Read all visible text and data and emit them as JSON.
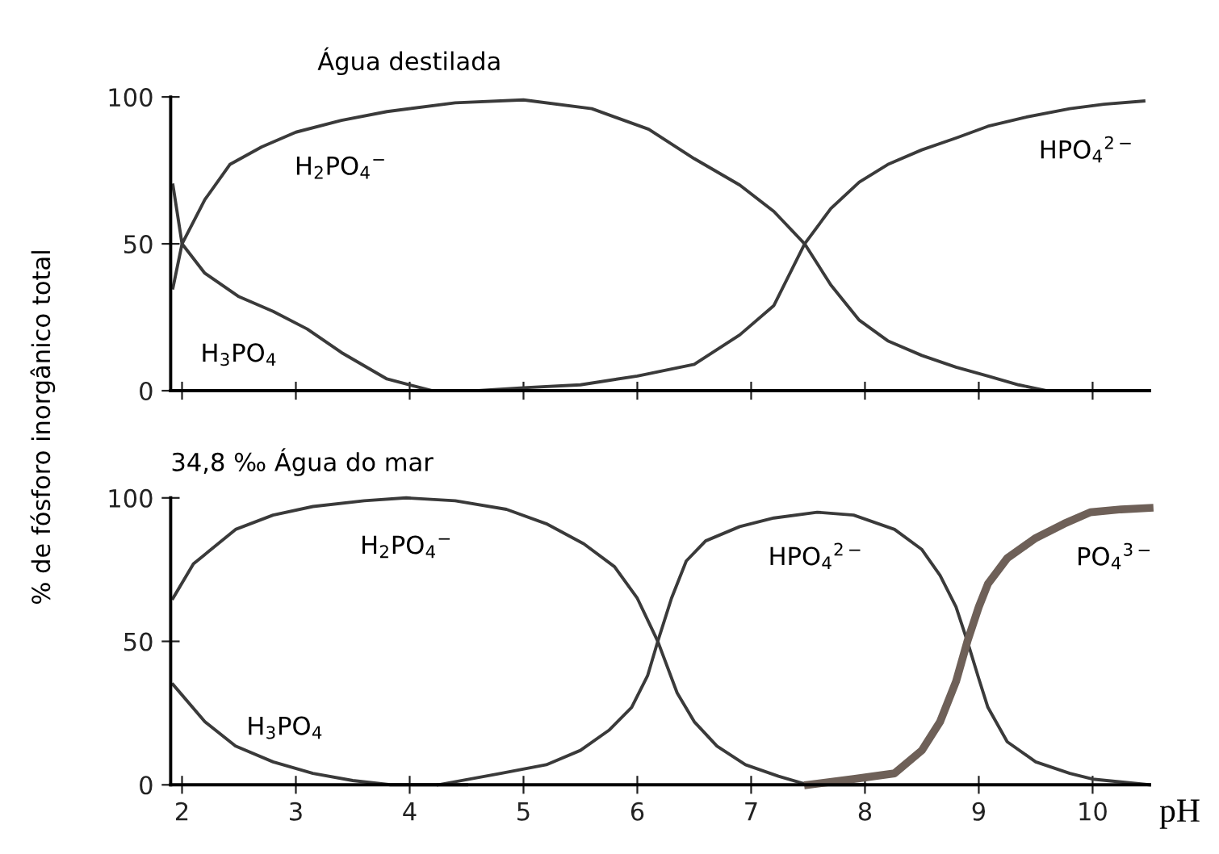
{
  "chart_data": [
    {
      "type": "line",
      "title": "Água destilada",
      "ylabel": "% de fósforo inorgânico total",
      "xlim": [
        1.9,
        10.5
      ],
      "ylim": [
        0,
        100
      ],
      "xticks": [
        {
          "value": 2,
          "label": null
        },
        {
          "value": 3,
          "label": null
        },
        {
          "value": 4,
          "label": null
        },
        {
          "value": 5,
          "label": null
        },
        {
          "value": 6,
          "label": null
        },
        {
          "value": 7,
          "label": null
        },
        {
          "value": 8,
          "label": null
        },
        {
          "value": 9,
          "label": null
        },
        {
          "value": 10,
          "label": null
        }
      ],
      "yticks": [
        0,
        50,
        100
      ],
      "tick_labels": "y",
      "grid": false,
      "legend": false,
      "marker": "none",
      "line_style": "solid",
      "series": [
        {
          "name": "H$_{3}$PO$_{4}$",
          "color": "#3a3a3a",
          "x": [
            1.92,
            2.0,
            2.2,
            2.5,
            2.8,
            3.1,
            3.4,
            3.8,
            4.2,
            5.0
          ],
          "values": [
            35,
            50,
            40,
            32,
            27,
            21,
            13,
            4,
            0,
            0
          ]
        },
        {
          "name": "H$_{2}$PO$_{4}$$^{−}$",
          "color": "#3a3a3a",
          "x": [
            1.92,
            2.0,
            2.2,
            2.42,
            2.7,
            3.0,
            3.4,
            3.8,
            4.4,
            5.0,
            5.6,
            6.1,
            6.5,
            6.9,
            7.2,
            7.47,
            7.7,
            7.95,
            8.2,
            8.5,
            8.8,
            9.08,
            9.35,
            9.6,
            10.4
          ],
          "values": [
            70,
            50,
            65,
            77,
            83,
            88,
            92,
            95,
            98,
            99,
            96,
            89,
            79,
            70,
            61,
            50,
            36,
            24,
            17,
            12,
            8,
            5,
            2,
            0,
            0
          ]
        },
        {
          "name": "HPO$_{4}$$^{2−}$",
          "color": "#3a3a3a",
          "x": [
            4.6,
            5.0,
            5.5,
            6.0,
            6.5,
            6.9,
            7.2,
            7.47,
            7.7,
            7.95,
            8.2,
            8.5,
            8.8,
            9.08,
            9.4,
            9.8,
            10.1,
            10.45
          ],
          "values": [
            0,
            1,
            2,
            5,
            9,
            19,
            29,
            50,
            62,
            71,
            77,
            82,
            86,
            90,
            93,
            96,
            97.5,
            98.6
          ]
        }
      ]
    },
    {
      "type": "line",
      "title": "34,8 ‰ Água do mar",
      "xlabel": "pH",
      "xlim": [
        1.9,
        10.5
      ],
      "ylim": [
        0,
        100
      ],
      "xticks": [
        2,
        3,
        4,
        5,
        6,
        7,
        8,
        9,
        10
      ],
      "yticks": [
        0,
        50,
        100
      ],
      "grid": false,
      "legend": false,
      "marker": "none",
      "line_style": "solid",
      "series": [
        {
          "name": "H$_{3}$PO$_{4}$",
          "color": "#3a3a3a",
          "x": [
            1.92,
            2.2,
            2.47,
            2.8,
            3.15,
            3.5,
            3.83,
            4.5
          ],
          "values": [
            35,
            22,
            13.5,
            8,
            4,
            1.5,
            0,
            0
          ]
        },
        {
          "name": "H$_{2}$PO$_{4}$$^{−}$",
          "color": "#3a3a3a",
          "x": [
            1.92,
            2.1,
            2.47,
            2.8,
            3.15,
            3.6,
            3.97,
            4.4,
            4.85,
            5.2,
            5.53,
            5.8,
            6.0,
            6.18,
            6.35,
            6.5,
            6.7,
            6.95,
            7.24,
            7.5,
            8.0
          ],
          "values": [
            65,
            77,
            89,
            94,
            97,
            99,
            100,
            99,
            96,
            91,
            84,
            76,
            65,
            50,
            32,
            22,
            13.5,
            7,
            3,
            0,
            0
          ]
        },
        {
          "name": "HPO$_{4}$$^{2−}$",
          "color": "#3a3a3a",
          "x": [
            4.25,
            4.8,
            5.2,
            5.5,
            5.75,
            5.95,
            6.09,
            6.18,
            6.3,
            6.43,
            6.6,
            6.9,
            7.2,
            7.58,
            7.9,
            8.26,
            8.5,
            8.66,
            8.8,
            8.9,
            9.0,
            9.08,
            9.25,
            9.5,
            9.8,
            10.0,
            10.5
          ],
          "values": [
            0,
            4,
            7,
            12,
            19,
            27,
            38,
            50,
            65,
            78,
            85,
            90,
            93,
            95,
            94,
            89,
            82,
            73,
            62,
            50,
            37,
            27,
            15,
            8,
            4,
            2,
            0
          ]
        },
        {
          "name": "PO$_{4}$$^{3−}$",
          "color": "#6e6058",
          "x": [
            7.5,
            7.9,
            8.26,
            8.5,
            8.66,
            8.8,
            8.9,
            9.0,
            9.08,
            9.25,
            9.5,
            9.75,
            9.98,
            10.25,
            10.5
          ],
          "values": [
            0,
            2,
            4,
            12,
            22,
            36,
            50,
            62,
            70,
            79,
            86,
            91,
            95,
            96,
            96.5
          ]
        }
      ]
    }
  ]
}
